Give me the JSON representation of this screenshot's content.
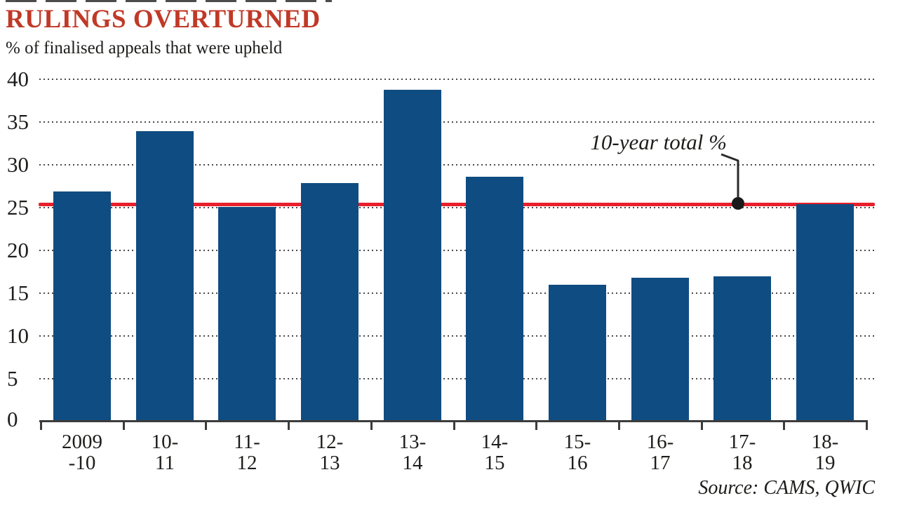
{
  "title": "RULINGS OVERTURNED",
  "subtitle": "% of finalised appeals that were upheld",
  "source": "Source: CAMS, QWIC",
  "annotation_label": "10-year total %",
  "colors": {
    "bar": "#0f4c81",
    "reference_line": "#e8202b",
    "title": "#c03927",
    "text": "#1d1d1b",
    "grid_dots": "#4a4a4a",
    "axis": "#3c3c3c",
    "annotation_dot": "#1a1a1a"
  },
  "chart_data": {
    "type": "bar",
    "title": "RULINGS OVERTURNED",
    "subtitle": "% of finalised appeals that were upheld",
    "categories": [
      "2009-10",
      "10-11",
      "11-12",
      "12-13",
      "13-14",
      "14-15",
      "15-16",
      "16-17",
      "17-18",
      "18-19"
    ],
    "category_labels_two_line": [
      [
        "2009",
        "-10"
      ],
      [
        "10-",
        "11"
      ],
      [
        "11-",
        "12"
      ],
      [
        "12-",
        "13"
      ],
      [
        "13-",
        "14"
      ],
      [
        "14-",
        "15"
      ],
      [
        "15-",
        "16"
      ],
      [
        "16-",
        "17"
      ],
      [
        "17-",
        "18"
      ],
      [
        "18-",
        "19"
      ]
    ],
    "values": [
      26.9,
      33.9,
      25.1,
      27.9,
      38.8,
      28.6,
      16.0,
      16.8,
      17.0,
      25.4
    ],
    "series_name": "% of finalised appeals upheld",
    "reference_line": {
      "value": 25.4,
      "label": "10-year total %"
    },
    "ylim": [
      0,
      40
    ],
    "yticks": [
      0,
      5,
      10,
      15,
      20,
      25,
      30,
      35,
      40
    ],
    "grid": "dotted-horizontal",
    "legend": "none",
    "source": "Source: CAMS, QWIC"
  }
}
